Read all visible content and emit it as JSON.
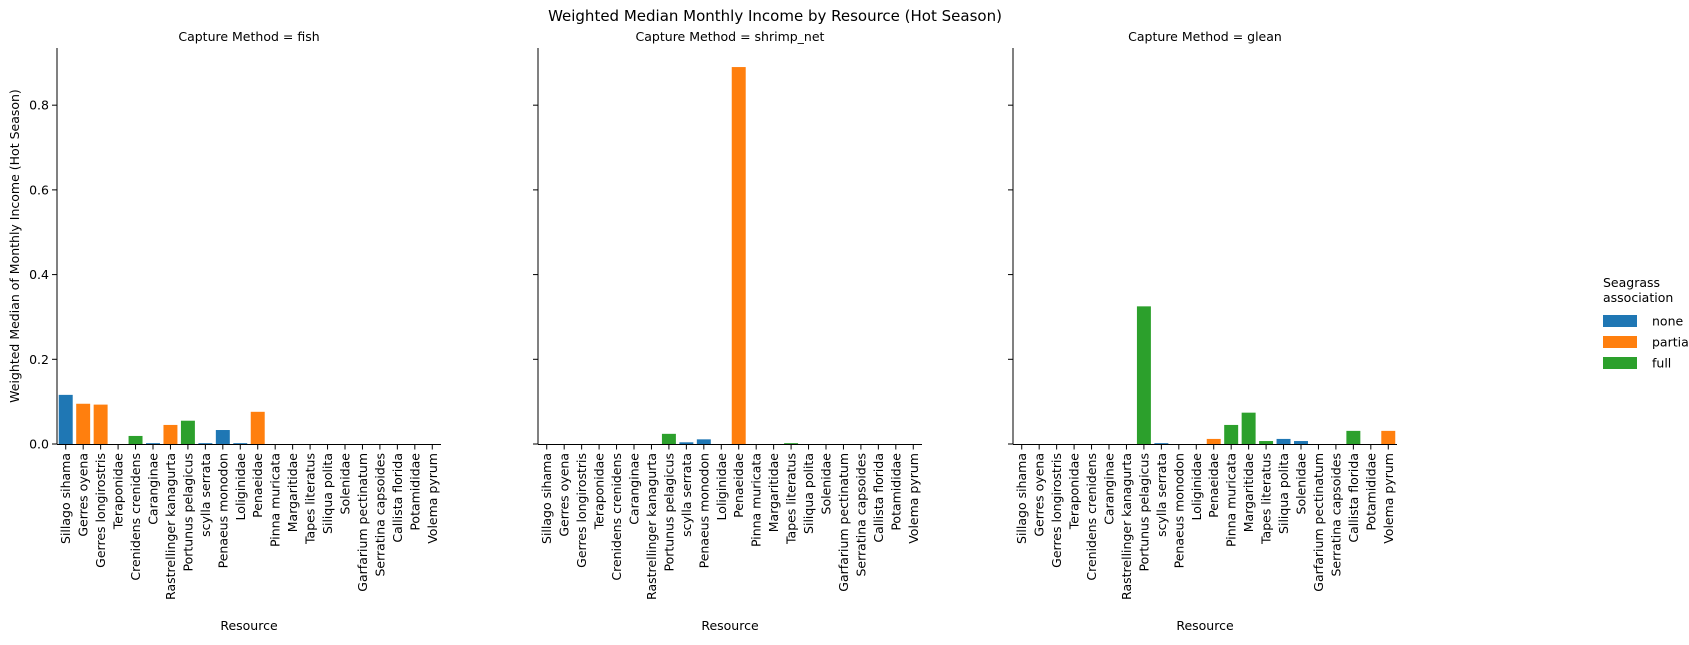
{
  "chart_data": {
    "type": "bar",
    "title": "Weighted Median Monthly Income by Resource (Hot Season)",
    "ylabel": "Weighted Median of Monthly Income (Hot Season)",
    "xlabel": "Resource",
    "ylim": [
      0,
      0.935
    ],
    "yticks": [
      0.0,
      0.2,
      0.4,
      0.6,
      0.8
    ],
    "ytick_labels": [
      "0.0",
      "0.2",
      "0.4",
      "0.6",
      "0.8"
    ],
    "categories": [
      "Sillago sihama",
      "Gerres oyena",
      "Gerres longirostris",
      "Teraponidae",
      "Crenidens crenidens",
      "Caranginae",
      "Rastrellinger kanagurta",
      "Portunus pelagicus",
      "scylla serrata",
      "Penaeus monodon",
      "Loliginidae",
      "Penaeidae",
      "Pinna muricata",
      "Margaritidae",
      "Tapes literatus",
      "Siliqua polita",
      "Solenidae",
      "Garfarium pectinatum",
      "Serratina capsoides",
      "Callista florida",
      "Potamididae",
      "Volema pyrum"
    ],
    "category_association": [
      "none",
      "partial",
      "partial",
      "none",
      "full",
      "none",
      "partial",
      "full",
      "none",
      "none",
      "none",
      "partial",
      "full",
      "full",
      "full",
      "none",
      "none",
      "full",
      "none",
      "full",
      "partial",
      "partial"
    ],
    "legend": {
      "title": "Seagrass\nassociation",
      "placement": "right",
      "entries": [
        {
          "name": "none",
          "color": "#1f77b4"
        },
        {
          "name": "partial",
          "color": "#ff7f0e"
        },
        {
          "name": "full",
          "color": "#2ca02c"
        }
      ]
    },
    "panels": [
      {
        "title": "Capture Method = fish",
        "values": [
          0.116,
          0.095,
          0.093,
          0,
          0.019,
          0.002,
          0.045,
          0.055,
          0.002,
          0.033,
          0.002,
          0.076,
          0,
          0,
          0,
          0,
          0,
          0,
          0,
          0,
          0,
          0
        ]
      },
      {
        "title": "Capture Method = shrimp_net",
        "values": [
          0,
          0,
          0,
          0,
          0,
          0,
          0,
          0.024,
          0.004,
          0.011,
          0,
          0.89,
          0,
          0,
          0.002,
          0,
          0,
          0,
          0,
          0,
          0,
          0
        ]
      },
      {
        "title": "Capture Method = glean",
        "values": [
          0,
          0,
          0,
          0,
          0,
          0,
          0,
          0.325,
          0.002,
          0,
          0,
          0.012,
          0.045,
          0.074,
          0.007,
          0.012,
          0.007,
          0,
          0,
          0.031,
          0,
          0.031
        ]
      }
    ]
  }
}
